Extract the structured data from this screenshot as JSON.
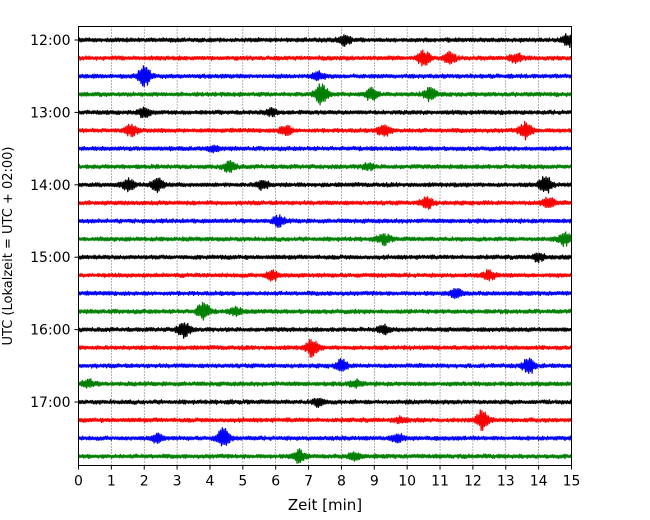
{
  "chart_data": {
    "type": "line",
    "description_kind": "helicorder",
    "xlabel": "Zeit  [min]",
    "ylabel": "UTC (Lokalzeit = UTC + 02:00)",
    "xlim": [
      0,
      15
    ],
    "xticks": [
      "0",
      "1",
      "2",
      "3",
      "4",
      "5",
      "6",
      "7",
      "8",
      "9",
      "10",
      "11",
      "12",
      "13",
      "14",
      "15"
    ],
    "vertical_gridlines": true,
    "grid_style": "dotted",
    "trace_colors": [
      "#000000",
      "#ff0000",
      "#0000ff",
      "#008000"
    ],
    "ytick_labels": [
      {
        "row": 0,
        "label": "12:00"
      },
      {
        "row": 4,
        "label": "13:00"
      },
      {
        "row": 8,
        "label": "14:00"
      },
      {
        "row": 12,
        "label": "15:00"
      },
      {
        "row": 16,
        "label": "16:00"
      },
      {
        "row": 20,
        "label": "17:00"
      }
    ],
    "rows": [
      {
        "start": "12:00",
        "bursts": [
          [
            8.1,
            0.8
          ],
          [
            14.9,
            1.0
          ]
        ]
      },
      {
        "start": "12:15",
        "bursts": [
          [
            10.5,
            1.2
          ],
          [
            11.3,
            0.8
          ],
          [
            13.3,
            0.8
          ]
        ]
      },
      {
        "start": "12:30",
        "bursts": [
          [
            2.0,
            1.6
          ],
          [
            7.3,
            0.6
          ]
        ]
      },
      {
        "start": "12:45",
        "bursts": [
          [
            7.4,
            1.8
          ],
          [
            8.9,
            1.0
          ],
          [
            10.7,
            1.1
          ]
        ]
      },
      {
        "start": "13:00",
        "bursts": [
          [
            2.0,
            0.8
          ],
          [
            5.9,
            0.5
          ]
        ]
      },
      {
        "start": "13:15",
        "bursts": [
          [
            1.6,
            0.8
          ],
          [
            6.3,
            0.8
          ],
          [
            9.3,
            1.0
          ],
          [
            13.6,
            1.4
          ]
        ]
      },
      {
        "start": "13:30",
        "bursts": [
          [
            4.1,
            0.4
          ]
        ]
      },
      {
        "start": "13:45",
        "bursts": [
          [
            4.6,
            0.8
          ],
          [
            8.8,
            0.5
          ]
        ]
      },
      {
        "start": "14:00",
        "bursts": [
          [
            1.5,
            1.0
          ],
          [
            2.4,
            1.0
          ],
          [
            5.6,
            0.8
          ],
          [
            14.2,
            1.4
          ]
        ]
      },
      {
        "start": "14:15",
        "bursts": [
          [
            10.6,
            1.0
          ],
          [
            14.3,
            0.9
          ]
        ]
      },
      {
        "start": "14:30",
        "bursts": [
          [
            6.1,
            0.8
          ]
        ]
      },
      {
        "start": "14:45",
        "bursts": [
          [
            9.3,
            0.8
          ],
          [
            14.8,
            1.0
          ]
        ]
      },
      {
        "start": "15:00",
        "bursts": [
          [
            14.0,
            0.6
          ]
        ]
      },
      {
        "start": "15:15",
        "bursts": [
          [
            5.9,
            0.8
          ],
          [
            12.5,
            0.7
          ]
        ]
      },
      {
        "start": "15:30",
        "bursts": [
          [
            11.5,
            0.7
          ]
        ]
      },
      {
        "start": "15:45",
        "bursts": [
          [
            3.8,
            1.5
          ],
          [
            4.8,
            0.6
          ]
        ]
      },
      {
        "start": "16:00",
        "bursts": [
          [
            3.2,
            1.3
          ],
          [
            9.3,
            0.6
          ]
        ]
      },
      {
        "start": "16:15",
        "bursts": [
          [
            7.1,
            1.3
          ]
        ]
      },
      {
        "start": "16:30",
        "bursts": [
          [
            8.0,
            0.9
          ],
          [
            13.7,
            1.2
          ]
        ]
      },
      {
        "start": "16:45",
        "bursts": [
          [
            8.4,
            0.6
          ],
          [
            0.3,
            0.6
          ]
        ]
      },
      {
        "start": "17:00",
        "bursts": [
          [
            7.3,
            0.6
          ]
        ]
      },
      {
        "start": "17:15",
        "bursts": [
          [
            12.3,
            1.8
          ],
          [
            9.8,
            0.4
          ]
        ]
      },
      {
        "start": "17:30",
        "bursts": [
          [
            4.4,
            1.6
          ],
          [
            9.7,
            0.8
          ],
          [
            2.4,
            0.6
          ]
        ]
      },
      {
        "start": "17:45",
        "bursts": [
          [
            6.7,
            1.0
          ],
          [
            8.4,
            0.6
          ]
        ]
      }
    ]
  }
}
